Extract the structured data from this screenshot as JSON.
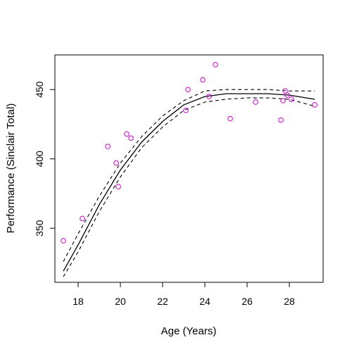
{
  "chart_data": {
    "type": "scatter",
    "title": "",
    "xlabel": "Age (Years)",
    "ylabel": "Performance (Sinclair Total)",
    "xlim": [
      16.9,
      29.6
    ],
    "ylim": [
      311,
      475
    ],
    "x_ticks": [
      18,
      20,
      22,
      24,
      26,
      28
    ],
    "y_ticks": [
      350,
      400,
      450
    ],
    "grid": false,
    "legend": "none",
    "colors": {
      "points": "#cc00cc",
      "fit": "#000000",
      "band": "#000000"
    },
    "series": [
      {
        "kind": "points",
        "x": [
          17.3,
          18.2,
          19.4,
          19.8,
          19.9,
          20.3,
          20.5,
          23.1,
          23.2,
          23.9,
          24.2,
          24.5,
          25.2,
          26.4,
          27.6,
          27.7,
          27.8,
          27.9,
          28.1,
          29.2
        ],
        "y": [
          341,
          357,
          409,
          397,
          380,
          418,
          415,
          435,
          450,
          457,
          445,
          468,
          429,
          441,
          428,
          442,
          449,
          446,
          443,
          439
        ]
      },
      {
        "kind": "fit",
        "style": "solid",
        "x": [
          17.3,
          18.0,
          19.0,
          20.0,
          21.0,
          22.0,
          23.0,
          24.0,
          25.0,
          26.0,
          27.0,
          28.0,
          29.2
        ],
        "y": [
          319,
          338,
          367,
          392,
          412,
          427,
          439,
          445,
          447,
          447,
          447,
          446,
          443
        ]
      },
      {
        "kind": "band-upper",
        "style": "dashed",
        "x": [
          17.3,
          18.0,
          19.0,
          20.0,
          21.0,
          22.0,
          23.0,
          24.0,
          25.0,
          26.0,
          27.0,
          28.0,
          29.2
        ],
        "y": [
          326,
          346,
          373,
          397,
          416,
          431,
          442,
          449,
          450,
          450,
          450,
          449,
          449
        ]
      },
      {
        "kind": "band-lower",
        "style": "dashed",
        "x": [
          17.3,
          18.0,
          19.0,
          20.0,
          21.0,
          22.0,
          23.0,
          24.0,
          25.0,
          26.0,
          27.0,
          28.0,
          29.2
        ],
        "y": [
          315,
          333,
          362,
          387,
          408,
          423,
          435,
          441,
          443,
          444,
          444,
          443,
          438
        ]
      }
    ]
  }
}
